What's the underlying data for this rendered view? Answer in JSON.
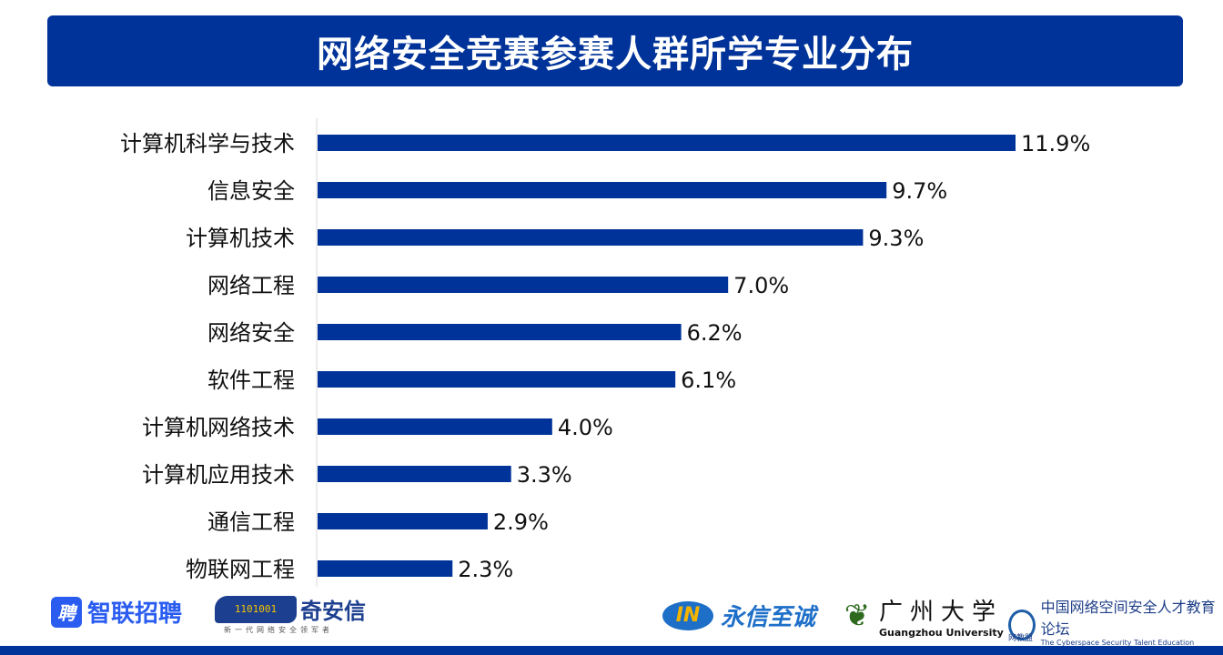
{
  "title": "网络安全竞赛参赛人群所学专业分布",
  "colors": {
    "bar": "#003399",
    "title_bg": "#003399"
  },
  "chart_data": {
    "type": "bar",
    "orientation": "horizontal",
    "title": "网络安全竞赛参赛人群所学专业分布",
    "xlabel": "",
    "ylabel": "",
    "xlim": [
      0,
      12
    ],
    "grid": false,
    "categories": [
      "计算机科学与技术",
      "信息安全",
      "计算机技术",
      "网络工程",
      "网络安全",
      "软件工程",
      "计算机网络技术",
      "计算机应用技术",
      "通信工程",
      "物联网工程"
    ],
    "values": [
      11.9,
      9.7,
      9.3,
      7.0,
      6.2,
      6.1,
      4.0,
      3.3,
      2.9,
      2.3
    ],
    "labels": [
      "11.9%",
      "9.7%",
      "9.3%",
      "7.0%",
      "6.2%",
      "6.1%",
      "4.0%",
      "3.3%",
      "2.9%",
      "2.3%"
    ],
    "unit": "%"
  },
  "logos": {
    "zhaopin": {
      "icon": "聘",
      "name": "智联招聘"
    },
    "qianxin": {
      "digits": "1101001",
      "name": "奇安信",
      "slogan": "新一代网络安全领军者"
    },
    "yongxin": {
      "mark": "IN",
      "name": "永信至诚"
    },
    "gzhu": {
      "name": "广州大学",
      "en": "Guangzhou University"
    },
    "alliance": {
      "name": "中国网络空间安全人才教育论坛",
      "en": "The Cyberspace Security Talent Education Alliance of China",
      "abbr": "网教盟"
    }
  }
}
